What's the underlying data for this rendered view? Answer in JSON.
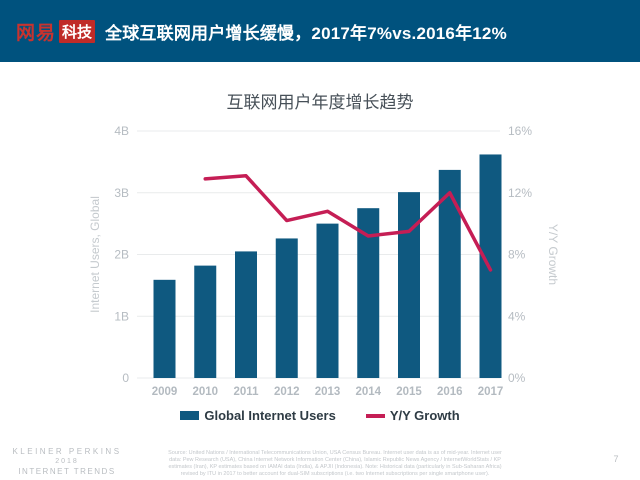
{
  "header": {
    "logo_brand": "网易",
    "logo_sub": "科技",
    "title": "全球互联网用户增长缓慢，2017年7%vs.2016年12%"
  },
  "chart_data": {
    "type": "bar",
    "title": "互联网用户年度增长趋势",
    "categories": [
      "2009",
      "2010",
      "2011",
      "2012",
      "2013",
      "2014",
      "2015",
      "2016",
      "2017"
    ],
    "series": [
      {
        "name": "Global Internet Users",
        "type": "bar",
        "axis": "left",
        "unit": "B",
        "color": "#0F5980",
        "values": [
          1.59,
          1.82,
          2.05,
          2.26,
          2.5,
          2.75,
          3.01,
          3.37,
          3.62
        ]
      },
      {
        "name": "Y/Y Growth",
        "type": "line",
        "axis": "right",
        "unit": "%",
        "color": "#C51E55",
        "values": [
          null,
          12.9,
          13.1,
          10.2,
          10.8,
          9.2,
          9.5,
          12.0,
          7.0
        ]
      }
    ],
    "left_axis": {
      "label": "Internet Users, Global",
      "min": 0,
      "max": 4,
      "ticks": [
        "0",
        "1B",
        "2B",
        "3B",
        "4B"
      ]
    },
    "right_axis": {
      "label": "Y/Y Growth",
      "min": 0,
      "max": 16,
      "ticks": [
        "0%",
        "4%",
        "8%",
        "12%",
        "16%"
      ]
    },
    "grid": true,
    "legend_position": "bottom",
    "grid_color": "#E9EBEC",
    "tick_color": "#B6BCC2",
    "axis_title_color": "#C5CACE",
    "category_color": "#B3BAC0"
  },
  "footer": {
    "branding_line1": "KLEINER PERKINS",
    "branding_line2": "2018",
    "branding_line3": "INTERNET TRENDS",
    "source_lines": [
      "Source: United Nations / International Telecommunications Union, USA Census Bureau. Internet user data is as of mid-year. Internet user",
      "data: Pew Research (USA), China Internet Network Information Center (China), Islamic Republic News Agency / InternetWorldStats / KP",
      "estimates (Iran), KP estimates based on IAMAI data (India), & APJII (Indonesia). Note: Historical data (particularly in Sub-Saharan Africa)",
      "revised by ITU in 2017 to better account for dual-SIM subscriptions (i.e. two Internet subscriptions per single smartphone user)."
    ],
    "page_number": "7"
  },
  "colors": {
    "header_bg": "#00527E",
    "bar": "#0F5980",
    "line": "#C51E55",
    "logo_red": "#C02B28"
  }
}
